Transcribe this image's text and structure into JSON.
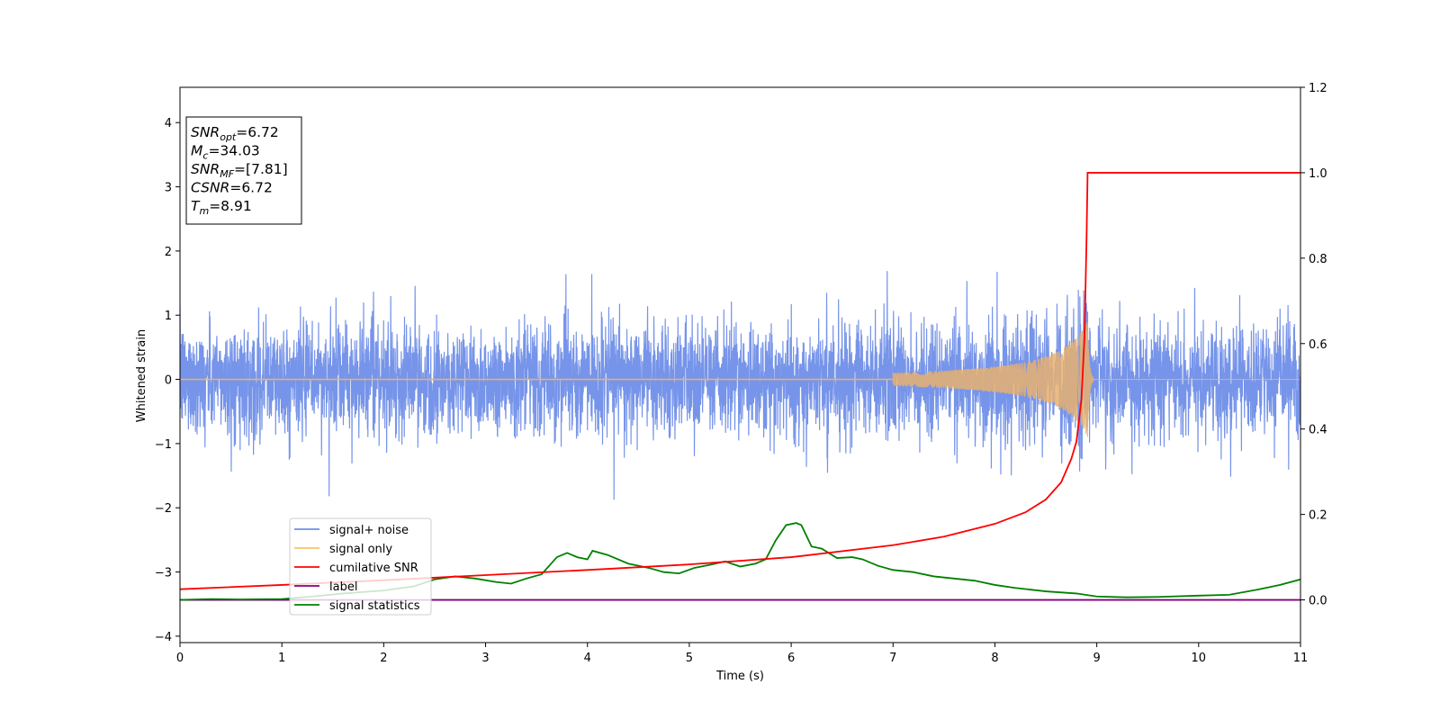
{
  "chart_data": {
    "type": "line",
    "title": "",
    "xlabel": "Time (s)",
    "ylabel": "Whitened strain",
    "xlim": [
      0,
      11
    ],
    "ylim_left": [
      -4.1,
      4.55
    ],
    "ylim_right": [
      -0.1,
      1.2
    ],
    "xticks": [
      0,
      1,
      2,
      3,
      4,
      5,
      6,
      7,
      8,
      9,
      10,
      11
    ],
    "yticks_left": [
      -4,
      -3,
      -2,
      -1,
      0,
      1,
      2,
      3,
      4
    ],
    "yticks_right": [
      "0.0",
      "0.2",
      "0.4",
      "0.6",
      "0.8",
      "1.0",
      "1.2"
    ],
    "grid": false,
    "annotation": {
      "lines": [
        {
          "main": "SNR",
          "sub": "opt",
          "rest": "=6.72"
        },
        {
          "main": "M",
          "sub": "c",
          "rest": "=34.03"
        },
        {
          "main": "SNR",
          "sub": "MF",
          "rest": "=[7.81]"
        },
        {
          "main": "CSNR",
          "sub": "",
          "rest": "=6.72"
        },
        {
          "main": "T",
          "sub": "m",
          "rest": "=8.91"
        }
      ]
    },
    "merger_time": 8.91,
    "legend": {
      "placement": "lower-left",
      "entries": [
        {
          "label": "signal+ noise",
          "color": "#6f8ee8"
        },
        {
          "label": "signal only",
          "color": "#f5c46b"
        },
        {
          "label": "cumilative SNR",
          "color": "#ff0000"
        },
        {
          "label": "label",
          "color": "#800080"
        },
        {
          "label": "signal statistics",
          "color": "#008000"
        }
      ]
    },
    "series": [
      {
        "name": "signal+ noise",
        "axis": "left",
        "color": "#6f8ee8",
        "description_stats": {
          "std": 0.42,
          "typical_max": 1.4,
          "typical_min": -1.3
        }
      },
      {
        "name": "signal only",
        "axis": "left",
        "color": "#f5c46b",
        "peak_amplitude": [
          1.1,
          -0.65
        ],
        "peak_time": 8.91
      },
      {
        "name": "cumilative SNR",
        "axis": "right",
        "color": "#ff0000",
        "x": [
          0,
          1,
          2,
          3,
          4,
          5,
          6,
          7,
          7.5,
          8,
          8.3,
          8.5,
          8.65,
          8.75,
          8.8,
          8.85,
          8.88,
          8.9,
          8.91,
          9,
          10,
          11
        ],
        "y": [
          0.025,
          0.035,
          0.046,
          0.058,
          0.07,
          0.083,
          0.1,
          0.128,
          0.148,
          0.178,
          0.205,
          0.235,
          0.275,
          0.33,
          0.37,
          0.47,
          0.62,
          0.85,
          1.0,
          1.0,
          1.0,
          1.0
        ]
      },
      {
        "name": "label",
        "axis": "right",
        "color": "#800080",
        "x": [
          0,
          11
        ],
        "y": [
          0,
          0
        ]
      },
      {
        "name": "signal statistics",
        "axis": "right",
        "color": "#008000",
        "x": [
          0,
          0.3,
          0.6,
          1.0,
          1.3,
          1.6,
          2.0,
          2.3,
          2.5,
          2.7,
          2.9,
          3.1,
          3.25,
          3.4,
          3.55,
          3.7,
          3.8,
          3.9,
          4.0,
          4.05,
          4.2,
          4.4,
          4.6,
          4.75,
          4.9,
          5.05,
          5.2,
          5.35,
          5.5,
          5.65,
          5.75,
          5.85,
          5.95,
          6.05,
          6.1,
          6.2,
          6.3,
          6.45,
          6.6,
          6.7,
          6.85,
          7.0,
          7.2,
          7.4,
          7.6,
          7.8,
          8.0,
          8.2,
          8.5,
          8.8,
          9.0,
          9.3,
          9.6,
          10.0,
          10.3,
          10.6,
          10.8,
          11.0
        ],
        "y": [
          0.0,
          0.002,
          0.001,
          0.002,
          0.008,
          0.015,
          0.022,
          0.032,
          0.048,
          0.055,
          0.05,
          0.042,
          0.038,
          0.05,
          0.06,
          0.1,
          0.11,
          0.1,
          0.095,
          0.115,
          0.105,
          0.085,
          0.075,
          0.065,
          0.062,
          0.075,
          0.082,
          0.09,
          0.078,
          0.085,
          0.095,
          0.14,
          0.175,
          0.18,
          0.175,
          0.125,
          0.12,
          0.098,
          0.1,
          0.095,
          0.08,
          0.07,
          0.065,
          0.055,
          0.05,
          0.045,
          0.035,
          0.028,
          0.02,
          0.015,
          0.008,
          0.006,
          0.007,
          0.01,
          0.012,
          0.025,
          0.035,
          0.048
        ]
      }
    ]
  }
}
